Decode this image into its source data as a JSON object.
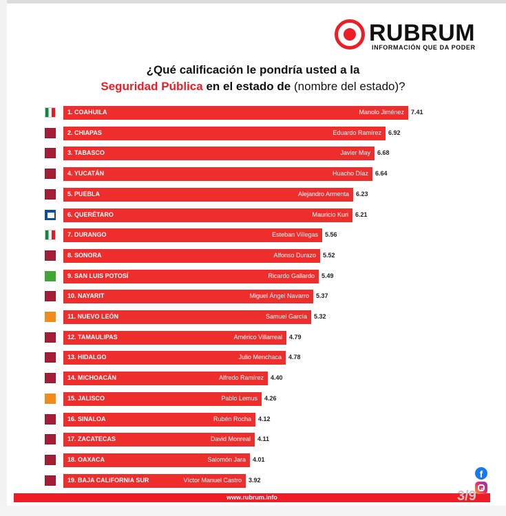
{
  "brand": {
    "name": "RUBRUM",
    "tagline": "INFORMACIÓN QUE DA PODER",
    "accent": "#ee1c25"
  },
  "title": {
    "line1": "¿Qué calificación le pondría usted a la",
    "line2_highlight": "Seguridad Pública",
    "line2_bold": "en el estado de",
    "line2_normal": "(nombre del estado)?"
  },
  "chart_data": {
    "type": "bar",
    "orientation": "horizontal",
    "bar_color": "#ee2d2d",
    "categories": [
      "1. COAHUILA",
      "2. CHIAPAS",
      "3. TABASCO",
      "4. YUCATÁN",
      "5. PUEBLA",
      "6. QUERÉTARO",
      "7. DURANGO",
      "8. SONORA",
      "9. SAN LUIS POTOSÍ",
      "10. NAYARIT",
      "11. NUEVO LEÓN",
      "12. TAMAULIPAS",
      "13. HIDALGO",
      "14. MICHOACÁN",
      "15. JALISCO",
      "16. SINALOA",
      "17. ZACATECAS",
      "18. OAXACA",
      "19. BAJA CALIFORNIA SUR"
    ],
    "governors": [
      "Manolo Jiménez",
      "Eduardo Ramírez",
      "Javier May",
      "Huacho Díaz",
      "Alejandro Armenta",
      "Mauricio Kuri",
      "Esteban Villegas",
      "Alfonso Durazo",
      "Ricardo Gallardo",
      "Miguel Ángel Navarro",
      "Samuel García",
      "Américo Villarreal",
      "Julio Menchaca",
      "Alfredo Ramírez",
      "Pablo Lemus",
      "Rubén Rocha",
      "David Monreal",
      "Salomón Jara",
      "Víctor Manuel Castro"
    ],
    "parties": [
      "pri",
      "morena",
      "morena",
      "morena",
      "morena",
      "pan",
      "pri",
      "morena",
      "pvem",
      "morena",
      "mc",
      "morena",
      "morena",
      "morena",
      "mc",
      "morena",
      "morena",
      "morena",
      "morena"
    ],
    "values": [
      7.41,
      6.92,
      6.68,
      6.64,
      6.23,
      6.21,
      5.56,
      5.52,
      5.49,
      5.37,
      5.32,
      4.79,
      4.78,
      4.4,
      4.26,
      4.12,
      4.11,
      4.01,
      3.92
    ],
    "value_labels": [
      "7.41",
      "6.92",
      "6.68",
      "6.64",
      "6.23",
      "6.21",
      "5.56",
      "5.52",
      "5.49",
      "5.37",
      "5.32",
      "4.79",
      "4.78",
      "4.40",
      "4.26",
      "4.12",
      "4.11",
      "4.01",
      "3.92"
    ],
    "xlim": [
      0,
      7.41
    ]
  },
  "party_icons": {
    "morena": {
      "icon": "morena-logo-icon",
      "color": "#a51e36",
      "glyph": ""
    },
    "pri": {
      "icon": "pri-logo-icon",
      "color": "#0a8a3a",
      "glyph": ""
    },
    "pan": {
      "icon": "pan-logo-icon",
      "color": "#0b4fa3",
      "glyph": ""
    },
    "pvem": {
      "icon": "pvem-logo-icon",
      "color": "#3fa535",
      "glyph": ""
    },
    "mc": {
      "icon": "mc-logo-icon",
      "color": "#f28b1e",
      "glyph": ""
    }
  },
  "footer": {
    "url": "www.rubrum.info"
  },
  "social": {
    "facebook": "f"
  },
  "page_indicator": "3/9"
}
